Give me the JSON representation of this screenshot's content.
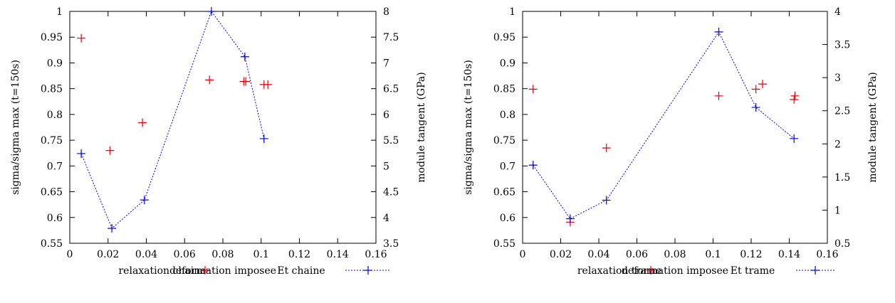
{
  "chart_data": [
    {
      "type": "scatter+line",
      "xlabel": "deformation imposee",
      "ylabel": "sigma/sigma max (t=150s)",
      "y2label": "module tangent (GPa)",
      "xlim": [
        0,
        0.16
      ],
      "ylim": [
        0.55,
        1
      ],
      "y2lim": [
        3.5,
        8
      ],
      "x_ticks": [
        "0",
        "0.02",
        "0.04",
        "0.06",
        "0.08",
        "0.1",
        "0.12",
        "0.14",
        "0.16"
      ],
      "y_ticks": [
        "0.55",
        "0.6",
        "0.65",
        "0.7",
        "0.75",
        "0.8",
        "0.85",
        "0.9",
        "0.95",
        "1"
      ],
      "y2_ticks": [
        "3.5",
        "4",
        "4.5",
        "5",
        "5.5",
        "6",
        "6.5",
        "7",
        "7.5",
        "8"
      ],
      "legend_position": "bottom",
      "series": [
        {
          "name": "relaxation chaine",
          "axis": "left",
          "style": "points",
          "color": "#e8000b",
          "points": [
            [
              0.006,
              0.948
            ],
            [
              0.021,
              0.73
            ],
            [
              0.038,
              0.784
            ],
            [
              0.073,
              0.867
            ],
            [
              0.091,
              0.864
            ],
            [
              0.092,
              0.864
            ],
            [
              0.1015,
              0.858
            ],
            [
              0.1035,
              0.858
            ]
          ]
        },
        {
          "name": "Et chaine",
          "axis": "right",
          "style": "linespoints",
          "color": "#0000e0",
          "points": [
            [
              0.006,
              5.24
            ],
            [
              0.022,
              3.79
            ],
            [
              0.039,
              4.34
            ],
            [
              0.074,
              8.0
            ],
            [
              0.0915,
              7.12
            ],
            [
              0.1015,
              5.53
            ]
          ]
        }
      ]
    },
    {
      "type": "scatter+line",
      "xlabel": "deformation imposee",
      "ylabel": "sigma/sigma max (t=150s)",
      "y2label": "module tangent (GPa)",
      "xlim": [
        0,
        0.16
      ],
      "ylim": [
        0.55,
        1
      ],
      "y2lim": [
        0.5,
        4
      ],
      "x_ticks": [
        "0",
        "0.02",
        "0.04",
        "0.06",
        "0.08",
        "0.1",
        "0.12",
        "0.14",
        "0.16"
      ],
      "y_ticks": [
        "0.55",
        "0.6",
        "0.65",
        "0.7",
        "0.75",
        "0.8",
        "0.85",
        "0.9",
        "0.95",
        "1"
      ],
      "y2_ticks": [
        "0.5",
        "1",
        "1.5",
        "2",
        "2.5",
        "3",
        "3.5",
        "4"
      ],
      "legend_position": "bottom",
      "series": [
        {
          "name": "relaxation trame",
          "axis": "left",
          "style": "points",
          "color": "#e8000b",
          "points": [
            [
              0.0055,
              0.849
            ],
            [
              0.025,
              0.591
            ],
            [
              0.044,
              0.735
            ],
            [
              0.103,
              0.836
            ],
            [
              0.1225,
              0.849
            ],
            [
              0.126,
              0.859
            ],
            [
              0.1425,
              0.829
            ],
            [
              0.143,
              0.836
            ]
          ]
        },
        {
          "name": "Et trame",
          "axis": "right",
          "style": "linespoints",
          "color": "#0000e0",
          "points": [
            [
              0.0055,
              1.68
            ],
            [
              0.025,
              0.87
            ],
            [
              0.044,
              1.15
            ],
            [
              0.103,
              3.69
            ],
            [
              0.1225,
              2.55
            ],
            [
              0.1425,
              2.08
            ]
          ]
        }
      ]
    }
  ]
}
